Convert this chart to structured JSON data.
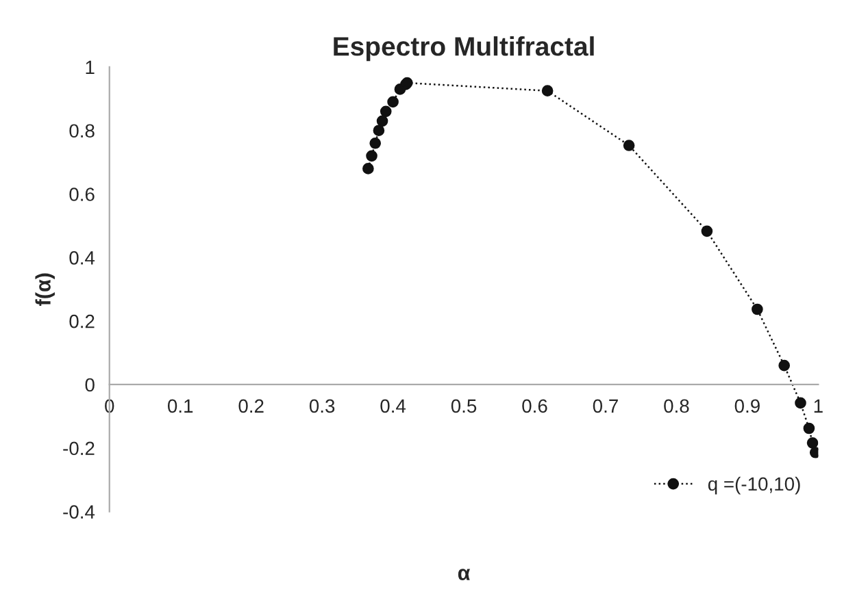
{
  "chart_data": {
    "type": "line",
    "title": "Espectro Multifractal",
    "xlabel": "α",
    "ylabel": "f(α)",
    "xlim": [
      0,
      1
    ],
    "xticks": [
      0,
      0.1,
      0.2,
      0.3,
      0.4,
      0.5,
      0.6,
      0.7,
      0.8,
      0.9,
      1
    ],
    "ylim": [
      -0.4,
      1
    ],
    "yticks": [
      -0.4,
      -0.2,
      0,
      0.2,
      0.4,
      0.6,
      0.8,
      1
    ],
    "grid": false,
    "legend": "bottom right",
    "marker": "circle",
    "line_style": "dotted",
    "series": [
      {
        "name": "q =(-10,10)",
        "color": "#111111",
        "x": [
          0.365,
          0.37,
          0.375,
          0.38,
          0.385,
          0.39,
          0.4,
          0.41,
          0.418,
          0.42,
          0.618,
          0.733,
          0.843,
          0.914,
          0.952,
          0.975,
          0.987,
          0.992,
          0.996
        ],
        "values": [
          0.68,
          0.72,
          0.76,
          0.8,
          0.83,
          0.86,
          0.89,
          0.93,
          0.945,
          0.95,
          0.925,
          0.753,
          0.483,
          0.237,
          0.06,
          -0.058,
          -0.138,
          -0.184,
          -0.214
        ]
      }
    ]
  }
}
